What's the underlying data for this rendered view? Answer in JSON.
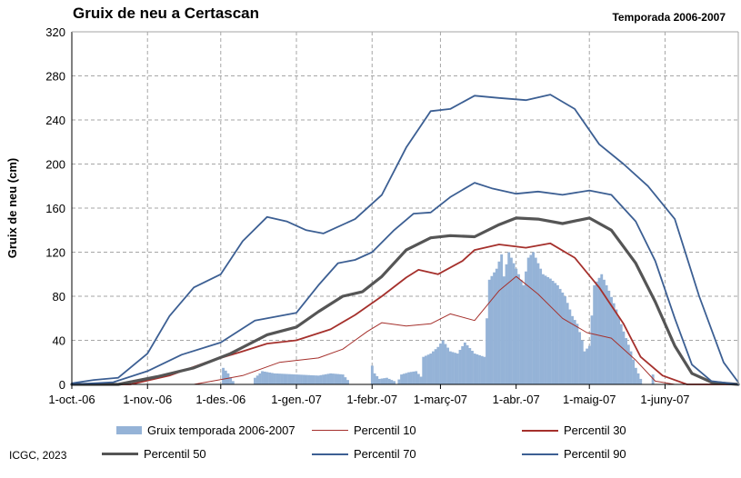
{
  "header": {
    "title": "Gruix de neu a Certascan",
    "season": "Temporada 2006-2007"
  },
  "footer": {
    "credit": "ICGC, 2023"
  },
  "colors": {
    "bars": "#95b3d7",
    "p10": "#a5302c",
    "p30": "#a5302c",
    "p50": "#555555",
    "p70": "#3c5f93",
    "p90": "#3c5f93",
    "grid": "#a6a6a6"
  },
  "chart_data": {
    "type": "bar",
    "title": "Gruix de neu a Certascan",
    "ylabel": "Gruix de neu (cm)",
    "xlabel": "",
    "ylim": [
      0,
      320
    ],
    "yticks": [
      "0",
      "40",
      "80",
      "120",
      "160",
      "200",
      "240",
      "280",
      "320"
    ],
    "x_range": [
      "2006-10-01",
      "2007-07-01"
    ],
    "xticks": [
      {
        "date": "2006-10-01",
        "label": "1-oct.-06"
      },
      {
        "date": "2006-11-01",
        "label": "1-nov.-06"
      },
      {
        "date": "2006-12-01",
        "label": "1-des.-06"
      },
      {
        "date": "2007-01-01",
        "label": "1-gen.-07"
      },
      {
        "date": "2007-02-01",
        "label": "1-febr.-07"
      },
      {
        "date": "2007-03-01",
        "label": "1-març-07"
      },
      {
        "date": "2007-04-01",
        "label": "1-abr.-07"
      },
      {
        "date": "2007-05-01",
        "label": "1-maig-07"
      },
      {
        "date": "2007-06-01",
        "label": "1-juny-07"
      }
    ],
    "grid": true,
    "legend_position": "bottom",
    "bars": {
      "name": "Gruix temporada 2006-2007",
      "points": [
        [
          "2006-12-01",
          0
        ],
        [
          "2006-12-02",
          15
        ],
        [
          "2006-12-04",
          10
        ],
        [
          "2006-12-06",
          3
        ],
        [
          "2006-12-07",
          0
        ],
        [
          "2006-12-14",
          0
        ],
        [
          "2006-12-15",
          6
        ],
        [
          "2006-12-18",
          12
        ],
        [
          "2006-12-23",
          10
        ],
        [
          "2007-01-01",
          9
        ],
        [
          "2007-01-10",
          8
        ],
        [
          "2007-01-15",
          10
        ],
        [
          "2007-01-20",
          9
        ],
        [
          "2007-01-22",
          4
        ],
        [
          "2007-01-23",
          0
        ],
        [
          "2007-01-31",
          0
        ],
        [
          "2007-02-01",
          17
        ],
        [
          "2007-02-02",
          10
        ],
        [
          "2007-02-04",
          5
        ],
        [
          "2007-02-07",
          6
        ],
        [
          "2007-02-10",
          3
        ],
        [
          "2007-02-11",
          0
        ],
        [
          "2007-02-13",
          9
        ],
        [
          "2007-02-16",
          11
        ],
        [
          "2007-02-19",
          12
        ],
        [
          "2007-02-21",
          7
        ],
        [
          "2007-02-22",
          25
        ],
        [
          "2007-02-25",
          28
        ],
        [
          "2007-02-28",
          34
        ],
        [
          "2007-03-02",
          40
        ],
        [
          "2007-03-05",
          30
        ],
        [
          "2007-03-08",
          28
        ],
        [
          "2007-03-11",
          38
        ],
        [
          "2007-03-13",
          33
        ],
        [
          "2007-03-15",
          28
        ],
        [
          "2007-03-19",
          25
        ],
        [
          "2007-03-21",
          95
        ],
        [
          "2007-03-24",
          105
        ],
        [
          "2007-03-26",
          118
        ],
        [
          "2007-03-27",
          98
        ],
        [
          "2007-03-29",
          120
        ],
        [
          "2007-04-01",
          105
        ],
        [
          "2007-04-04",
          90
        ],
        [
          "2007-04-06",
          115
        ],
        [
          "2007-04-08",
          120
        ],
        [
          "2007-04-10",
          110
        ],
        [
          "2007-04-12",
          100
        ],
        [
          "2007-04-15",
          96
        ],
        [
          "2007-04-18",
          90
        ],
        [
          "2007-04-21",
          80
        ],
        [
          "2007-04-24",
          62
        ],
        [
          "2007-04-26",
          55
        ],
        [
          "2007-04-28",
          40
        ],
        [
          "2007-04-29",
          30
        ],
        [
          "2007-05-01",
          35
        ],
        [
          "2007-05-03",
          90
        ],
        [
          "2007-05-06",
          100
        ],
        [
          "2007-05-09",
          85
        ],
        [
          "2007-05-12",
          68
        ],
        [
          "2007-05-15",
          48
        ],
        [
          "2007-05-18",
          30
        ],
        [
          "2007-05-20",
          15
        ],
        [
          "2007-05-22",
          5
        ],
        [
          "2007-05-23",
          0
        ],
        [
          "2007-05-26",
          0
        ],
        [
          "2007-05-27",
          9
        ],
        [
          "2007-05-28",
          0
        ]
      ]
    },
    "series": [
      {
        "name": "Percentil 10",
        "style": "thin",
        "color": "#a5302c",
        "points": [
          [
            "2006-10-01",
            0
          ],
          [
            "2006-11-20",
            0
          ],
          [
            "2006-12-10",
            8
          ],
          [
            "2006-12-25",
            20
          ],
          [
            "2007-01-10",
            24
          ],
          [
            "2007-01-20",
            32
          ],
          [
            "2007-01-30",
            48
          ],
          [
            "2007-02-05",
            56
          ],
          [
            "2007-02-15",
            53
          ],
          [
            "2007-02-25",
            55
          ],
          [
            "2007-03-05",
            64
          ],
          [
            "2007-03-15",
            58
          ],
          [
            "2007-03-25",
            85
          ],
          [
            "2007-04-01",
            98
          ],
          [
            "2007-04-10",
            82
          ],
          [
            "2007-04-20",
            60
          ],
          [
            "2007-04-30",
            47
          ],
          [
            "2007-05-10",
            42
          ],
          [
            "2007-05-20",
            22
          ],
          [
            "2007-05-28",
            3
          ],
          [
            "2007-06-05",
            0
          ],
          [
            "2007-07-01",
            0
          ]
        ]
      },
      {
        "name": "Percentil 30",
        "style": "medium",
        "color": "#a5302c",
        "points": [
          [
            "2006-10-01",
            0
          ],
          [
            "2006-10-25",
            0
          ],
          [
            "2006-11-10",
            8
          ],
          [
            "2006-11-25",
            20
          ],
          [
            "2006-12-10",
            30
          ],
          [
            "2006-12-20",
            37
          ],
          [
            "2007-01-01",
            40
          ],
          [
            "2007-01-15",
            50
          ],
          [
            "2007-01-25",
            63
          ],
          [
            "2007-02-05",
            80
          ],
          [
            "2007-02-15",
            97
          ],
          [
            "2007-02-20",
            104
          ],
          [
            "2007-02-28",
            100
          ],
          [
            "2007-03-10",
            112
          ],
          [
            "2007-03-15",
            122
          ],
          [
            "2007-03-25",
            127
          ],
          [
            "2007-04-05",
            124
          ],
          [
            "2007-04-15",
            128
          ],
          [
            "2007-04-25",
            115
          ],
          [
            "2007-05-05",
            88
          ],
          [
            "2007-05-15",
            55
          ],
          [
            "2007-05-22",
            25
          ],
          [
            "2007-05-31",
            8
          ],
          [
            "2007-06-10",
            0
          ],
          [
            "2007-07-01",
            0
          ]
        ]
      },
      {
        "name": "Percentil 50",
        "style": "thick",
        "color": "#555555",
        "points": [
          [
            "2006-10-01",
            0
          ],
          [
            "2006-10-20",
            0
          ],
          [
            "2006-11-05",
            7
          ],
          [
            "2006-11-20",
            15
          ],
          [
            "2006-12-05",
            28
          ],
          [
            "2006-12-20",
            45
          ],
          [
            "2007-01-01",
            52
          ],
          [
            "2007-01-10",
            66
          ],
          [
            "2007-01-20",
            80
          ],
          [
            "2007-01-28",
            84
          ],
          [
            "2007-02-05",
            98
          ],
          [
            "2007-02-15",
            122
          ],
          [
            "2007-02-25",
            133
          ],
          [
            "2007-03-05",
            135
          ],
          [
            "2007-03-15",
            134
          ],
          [
            "2007-03-25",
            145
          ],
          [
            "2007-04-01",
            151
          ],
          [
            "2007-04-10",
            150
          ],
          [
            "2007-04-20",
            146
          ],
          [
            "2007-05-01",
            151
          ],
          [
            "2007-05-10",
            140
          ],
          [
            "2007-05-20",
            110
          ],
          [
            "2007-05-28",
            75
          ],
          [
            "2007-06-05",
            35
          ],
          [
            "2007-06-12",
            10
          ],
          [
            "2007-06-20",
            2
          ],
          [
            "2007-07-01",
            0
          ]
        ]
      },
      {
        "name": "Percentil 70",
        "style": "medium",
        "color": "#3c5f93",
        "points": [
          [
            "2006-10-01",
            0
          ],
          [
            "2006-10-18",
            2
          ],
          [
            "2006-11-01",
            12
          ],
          [
            "2006-11-15",
            27
          ],
          [
            "2006-12-01",
            38
          ],
          [
            "2006-12-15",
            58
          ],
          [
            "2007-01-01",
            65
          ],
          [
            "2007-01-10",
            90
          ],
          [
            "2007-01-18",
            110
          ],
          [
            "2007-01-25",
            113
          ],
          [
            "2007-02-01",
            120
          ],
          [
            "2007-02-10",
            140
          ],
          [
            "2007-02-18",
            155
          ],
          [
            "2007-02-25",
            156
          ],
          [
            "2007-03-05",
            170
          ],
          [
            "2007-03-15",
            183
          ],
          [
            "2007-03-22",
            178
          ],
          [
            "2007-04-01",
            173
          ],
          [
            "2007-04-10",
            175
          ],
          [
            "2007-04-20",
            172
          ],
          [
            "2007-05-01",
            176
          ],
          [
            "2007-05-10",
            172
          ],
          [
            "2007-05-20",
            148
          ],
          [
            "2007-05-28",
            112
          ],
          [
            "2007-06-05",
            60
          ],
          [
            "2007-06-12",
            18
          ],
          [
            "2007-06-20",
            3
          ],
          [
            "2007-07-01",
            0
          ]
        ]
      },
      {
        "name": "Percentil 90",
        "style": "medium",
        "color": "#3c5f93",
        "points": [
          [
            "2006-10-01",
            1
          ],
          [
            "2006-10-10",
            4
          ],
          [
            "2006-10-20",
            6
          ],
          [
            "2006-11-01",
            28
          ],
          [
            "2006-11-10",
            62
          ],
          [
            "2006-11-20",
            88
          ],
          [
            "2006-12-01",
            100
          ],
          [
            "2006-12-10",
            130
          ],
          [
            "2006-12-20",
            152
          ],
          [
            "2006-12-28",
            148
          ],
          [
            "2007-01-05",
            140
          ],
          [
            "2007-01-12",
            137
          ],
          [
            "2007-01-25",
            150
          ],
          [
            "2007-02-05",
            172
          ],
          [
            "2007-02-15",
            215
          ],
          [
            "2007-02-25",
            248
          ],
          [
            "2007-03-05",
            250
          ],
          [
            "2007-03-15",
            262
          ],
          [
            "2007-03-25",
            260
          ],
          [
            "2007-04-05",
            258
          ],
          [
            "2007-04-15",
            263
          ],
          [
            "2007-04-25",
            250
          ],
          [
            "2007-05-05",
            218
          ],
          [
            "2007-05-15",
            200
          ],
          [
            "2007-05-25",
            180
          ],
          [
            "2007-06-05",
            150
          ],
          [
            "2007-06-15",
            80
          ],
          [
            "2007-06-25",
            20
          ],
          [
            "2007-07-01",
            2
          ]
        ]
      }
    ]
  }
}
